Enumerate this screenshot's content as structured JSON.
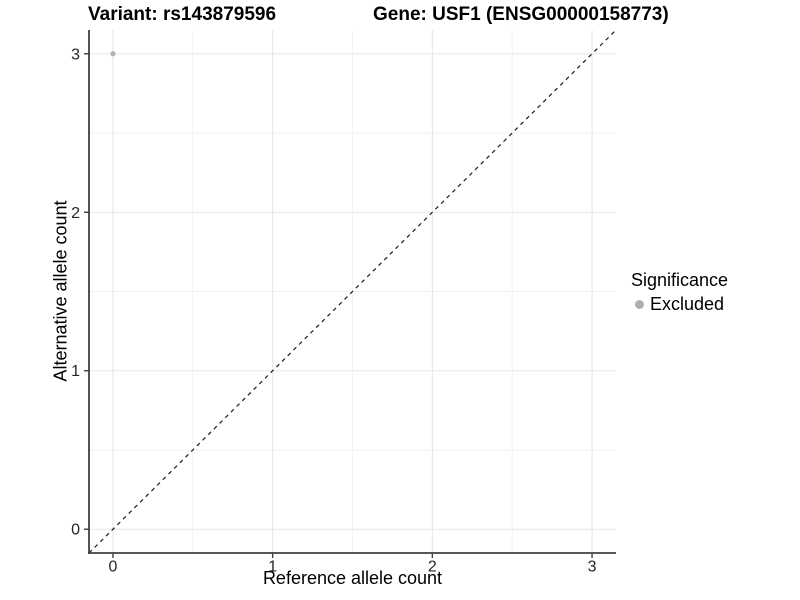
{
  "chart_data": {
    "type": "scatter",
    "title_left": "Variant: rs143879596",
    "title_right": "Gene: USF1 (ENSG00000158773)",
    "xlabel": "Reference allele count",
    "ylabel": "Alternative allele count",
    "xlim": [
      -0.15,
      3.15
    ],
    "ylim": [
      -0.15,
      3.15
    ],
    "x_ticks": [
      0,
      1,
      2,
      3
    ],
    "y_ticks": [
      0,
      1,
      2,
      3
    ],
    "x_minor_ticks": [
      0.5,
      1.5,
      2.5
    ],
    "y_minor_ticks": [
      0.5,
      1.5,
      2.5
    ],
    "grid": true,
    "points": [
      {
        "x": 0,
        "y": 3,
        "series": "Excluded",
        "color": "#b3b3b3"
      }
    ],
    "reference_line": {
      "style": "dashed",
      "from": [
        -0.15,
        -0.15
      ],
      "to": [
        3.15,
        3.15
      ],
      "color": "#1a1a1a"
    },
    "legend": {
      "title": "Significance",
      "position": "right",
      "entries": [
        {
          "label": "Excluded",
          "color": "#b0b0b0"
        }
      ]
    }
  },
  "colors": {
    "background": "#ffffff",
    "axis_line": "#404040",
    "tick_label": "#262626",
    "grid_major": "#e5e5e5",
    "grid_minor": "#f2f2f2"
  }
}
